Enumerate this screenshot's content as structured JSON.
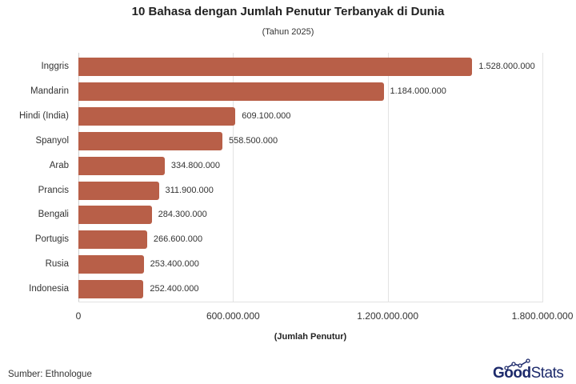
{
  "header": {
    "title": "10 Bahasa dengan Jumlah Penutur Terbanyak di Dunia",
    "subtitle": "(Tahun 2025)"
  },
  "footer": {
    "source": "Sumber: Ethnologue",
    "logo_bold": "Good",
    "logo_light": "Stats"
  },
  "colors": {
    "bar": "#b85f48",
    "logo": "#1d2a6b"
  },
  "chart_data": {
    "type": "bar",
    "orientation": "horizontal",
    "title": "10 Bahasa dengan Jumlah Penutur Terbanyak di Dunia",
    "subtitle": "(Tahun 2025)",
    "xlabel": "(Jumlah Penutur)",
    "ylabel": "",
    "xlim": [
      0,
      1800000000
    ],
    "xticks": [
      0,
      600000000,
      1200000000,
      1800000000
    ],
    "xtick_labels": [
      "0",
      "600.000.000",
      "1.200.000.000",
      "1.800.000.000"
    ],
    "grid": true,
    "legend": null,
    "categories": [
      "Inggris",
      "Mandarin",
      "Hindi (India)",
      "Spanyol",
      "Arab",
      "Prancis",
      "Bengali",
      "Portugis",
      "Rusia",
      "Indonesia"
    ],
    "values": [
      1528000000,
      1184000000,
      609100000,
      558500000,
      334800000,
      311900000,
      284300000,
      266600000,
      253400000,
      252400000
    ],
    "value_labels": [
      "1.528.000.000",
      "1.184.000.000",
      "609.100.000",
      "558.500.000",
      "334.800.000",
      "311.900.000",
      "284.300.000",
      "266.600.000",
      "253.400.000",
      "252.400.000"
    ],
    "source": "Sumber: Ethnologue"
  }
}
